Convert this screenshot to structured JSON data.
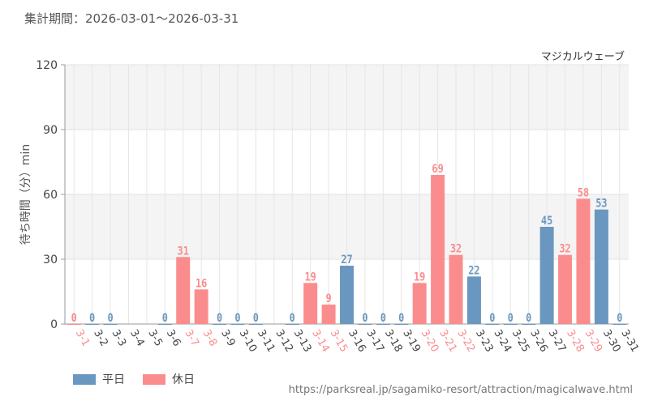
{
  "header": {
    "period_text": "集計期間：2026-03-01～2026-03-31"
  },
  "chart_data": {
    "type": "bar",
    "title": "マジカルウェーブ",
    "ylabel": "待ち時間（分）min",
    "xlabel": "",
    "ylim": [
      0,
      120
    ],
    "yticks": [
      0,
      30,
      60,
      90,
      120
    ],
    "grid": true,
    "colors": {
      "weekday": "#6a97c0",
      "holiday": "#fb8c8e"
    },
    "bars": [
      {
        "label": "3-1",
        "value": 0,
        "type": "holiday"
      },
      {
        "label": "3-2",
        "value": 0,
        "type": "weekday"
      },
      {
        "label": "3-3",
        "value": 0,
        "type": "weekday"
      },
      {
        "label": "3-4",
        "value": null,
        "type": "weekday"
      },
      {
        "label": "3-5",
        "value": null,
        "type": "weekday"
      },
      {
        "label": "3-6",
        "value": 0,
        "type": "weekday"
      },
      {
        "label": "3-7",
        "value": 31,
        "type": "holiday"
      },
      {
        "label": "3-8",
        "value": 16,
        "type": "holiday"
      },
      {
        "label": "3-9",
        "value": 0,
        "type": "weekday"
      },
      {
        "label": "3-10",
        "value": 0,
        "type": "weekday"
      },
      {
        "label": "3-11",
        "value": 0,
        "type": "weekday"
      },
      {
        "label": "3-12",
        "value": null,
        "type": "weekday"
      },
      {
        "label": "3-13",
        "value": 0,
        "type": "weekday"
      },
      {
        "label": "3-14",
        "value": 19,
        "type": "holiday"
      },
      {
        "label": "3-15",
        "value": 9,
        "type": "holiday"
      },
      {
        "label": "3-16",
        "value": 27,
        "type": "weekday"
      },
      {
        "label": "3-17",
        "value": 0,
        "type": "weekday"
      },
      {
        "label": "3-18",
        "value": 0,
        "type": "weekday"
      },
      {
        "label": "3-19",
        "value": 0,
        "type": "weekday"
      },
      {
        "label": "3-20",
        "value": 19,
        "type": "holiday"
      },
      {
        "label": "3-21",
        "value": 69,
        "type": "holiday"
      },
      {
        "label": "3-22",
        "value": 32,
        "type": "holiday"
      },
      {
        "label": "3-23",
        "value": 22,
        "type": "weekday"
      },
      {
        "label": "3-24",
        "value": 0,
        "type": "weekday"
      },
      {
        "label": "3-25",
        "value": 0,
        "type": "weekday"
      },
      {
        "label": "3-26",
        "value": 0,
        "type": "weekday"
      },
      {
        "label": "3-27",
        "value": 45,
        "type": "weekday"
      },
      {
        "label": "3-28",
        "value": 32,
        "type": "holiday"
      },
      {
        "label": "3-29",
        "value": 58,
        "type": "holiday"
      },
      {
        "label": "3-30",
        "value": 53,
        "type": "weekday"
      },
      {
        "label": "3-31",
        "value": 0,
        "type": "weekday"
      }
    ],
    "legend": [
      {
        "key": "weekday",
        "label": "平日"
      },
      {
        "key": "holiday",
        "label": "休日"
      }
    ]
  },
  "footer": {
    "source_url": "https://parksreal.jp/sagamiko-resort/attraction/magicalwave.html"
  }
}
